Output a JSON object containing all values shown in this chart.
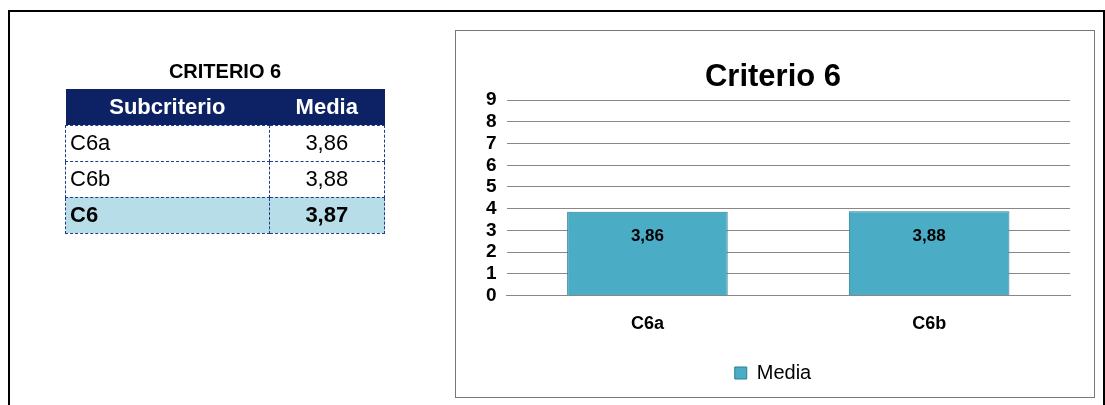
{
  "chart_data": [
    {
      "type": "other",
      "title": "CRITERIO 6",
      "annotations": [
        "Subcriterio",
        "Media",
        "C6a",
        "3,86",
        "C6b",
        "3,88",
        "C6",
        "3,87"
      ]
    },
    {
      "type": "bar",
      "title": "Criterio 6",
      "categories": [
        "C6a",
        "C6b"
      ],
      "series": [
        {
          "name": "Media",
          "color": "#4bacc6",
          "values": [
            3.86,
            3.88
          ],
          "value_labels": [
            "3,86",
            "3,88"
          ]
        }
      ],
      "ylim": [
        0,
        9
      ],
      "yticks": [
        0,
        1,
        2,
        3,
        4,
        5,
        6,
        7,
        8,
        9
      ],
      "grid": "y",
      "legend": "bottom"
    }
  ]
}
